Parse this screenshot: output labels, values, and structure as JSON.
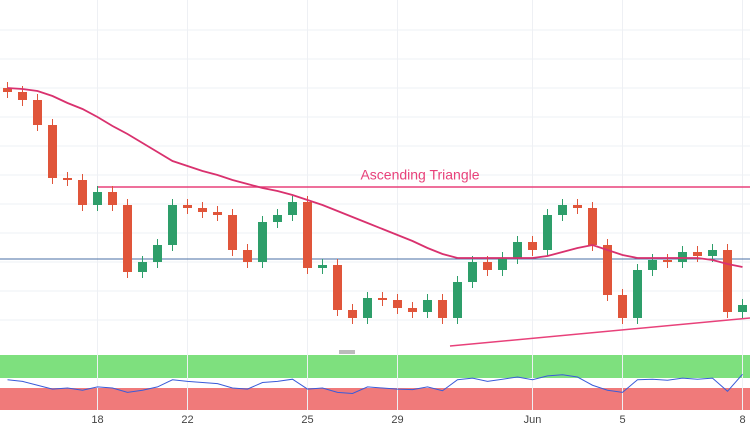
{
  "chart_data": {
    "type": "candlestick",
    "annotation": "Ascending Triangle",
    "categories": [
      null,
      null,
      null,
      null,
      null,
      null,
      "18",
      null,
      null,
      null,
      null,
      null,
      "22",
      null,
      null,
      null,
      null,
      null,
      null,
      null,
      "25",
      null,
      null,
      null,
      null,
      null,
      "29",
      null,
      null,
      null,
      null,
      null,
      null,
      null,
      null,
      "Jun",
      null,
      null,
      null,
      null,
      null,
      "5",
      null,
      null,
      null,
      null,
      null,
      null,
      null,
      "8"
    ],
    "open": [
      262,
      258,
      250,
      225,
      172,
      170,
      145,
      158,
      145,
      78,
      88,
      105,
      145,
      142,
      138,
      135,
      100,
      88,
      128,
      135,
      148,
      82,
      85,
      40,
      32,
      52,
      50,
      42,
      38,
      50,
      32,
      68,
      88,
      80,
      92,
      108,
      100,
      135,
      145,
      142,
      105,
      55,
      32,
      80,
      90,
      88,
      98,
      94,
      100,
      38
    ],
    "high": [
      268,
      264,
      256,
      231,
      178,
      176,
      164,
      164,
      151,
      94,
      111,
      151,
      151,
      148,
      144,
      141,
      106,
      134,
      141,
      154,
      154,
      91,
      91,
      46,
      58,
      58,
      56,
      48,
      56,
      56,
      74,
      94,
      94,
      98,
      114,
      114,
      141,
      151,
      151,
      148,
      111,
      61,
      86,
      96,
      96,
      104,
      104,
      106,
      106,
      51
    ],
    "low": [
      252,
      244,
      219,
      166,
      164,
      139,
      139,
      139,
      72,
      72,
      82,
      99,
      136,
      132,
      129,
      94,
      82,
      82,
      122,
      129,
      76,
      76,
      34,
      26,
      26,
      44,
      36,
      32,
      32,
      26,
      26,
      62,
      74,
      74,
      86,
      94,
      94,
      129,
      136,
      99,
      49,
      26,
      26,
      74,
      82,
      82,
      88,
      88,
      32,
      32
    ],
    "close": [
      258,
      250,
      225,
      172,
      170,
      145,
      158,
      145,
      78,
      88,
      105,
      145,
      142,
      138,
      135,
      100,
      88,
      128,
      135,
      148,
      82,
      85,
      40,
      32,
      52,
      50,
      42,
      38,
      50,
      32,
      68,
      88,
      80,
      92,
      108,
      100,
      135,
      145,
      142,
      105,
      55,
      32,
      80,
      90,
      88,
      98,
      94,
      100,
      38,
      45
    ],
    "up_color": "#2e9e6a",
    "down_color": "#e0553a",
    "moving_average": {
      "color": "#d9316e",
      "values": [
        262,
        261,
        259,
        254,
        247,
        241,
        233,
        224,
        216,
        207,
        198,
        189,
        184,
        179,
        175,
        170,
        166,
        162,
        159,
        155,
        150,
        145,
        139,
        133,
        127,
        121,
        115,
        109,
        102,
        96,
        92,
        92,
        92,
        92,
        92,
        92,
        94,
        98,
        102,
        105,
        100,
        95,
        92,
        92,
        92,
        92,
        92,
        90,
        86,
        83
      ]
    },
    "resistance": 163,
    "support": [
      4,
      32
    ],
    "reference_level": 91,
    "ylim": [
      0,
      350
    ],
    "rsi": {
      "color": "#3a5bd9",
      "ylim": [
        0,
        100
      ],
      "values": [
        55,
        52,
        45,
        38,
        40,
        36,
        42,
        40,
        32,
        36,
        42,
        55,
        52,
        50,
        48,
        40,
        38,
        50,
        52,
        56,
        38,
        40,
        32,
        30,
        42,
        40,
        38,
        37,
        42,
        35,
        55,
        58,
        52,
        56,
        60,
        55,
        62,
        64,
        60,
        45,
        36,
        32,
        55,
        56,
        54,
        58,
        56,
        58,
        34,
        65
      ]
    }
  }
}
